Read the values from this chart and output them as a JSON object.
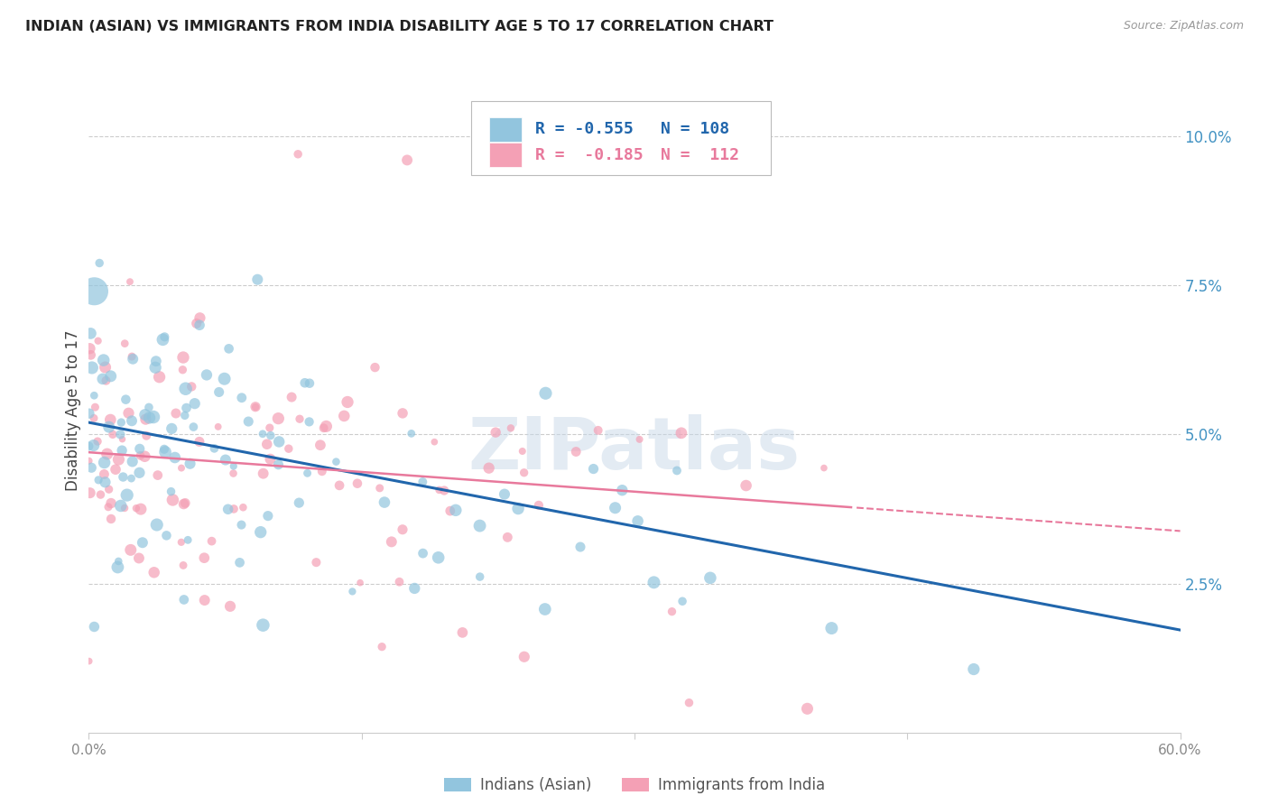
{
  "title": "INDIAN (ASIAN) VS IMMIGRANTS FROM INDIA DISABILITY AGE 5 TO 17 CORRELATION CHART",
  "source": "Source: ZipAtlas.com",
  "ylabel": "Disability Age 5 to 17",
  "right_ytick_labels": [
    "10.0%",
    "7.5%",
    "5.0%",
    "2.5%"
  ],
  "right_ytick_values": [
    0.1,
    0.075,
    0.05,
    0.025
  ],
  "xlim": [
    0.0,
    0.6
  ],
  "ylim": [
    0.0,
    0.108
  ],
  "color_blue": "#92c5de",
  "color_pink": "#f4a0b5",
  "color_blue_line": "#2166ac",
  "color_pink_line": "#e8799c",
  "color_title": "#222222",
  "color_source": "#999999",
  "color_right_labels": "#4393c3",
  "color_xtick": "#888888",
  "watermark_text": "ZIPatlas",
  "blue_n": 108,
  "pink_n": 112,
  "blue_intercept": 0.052,
  "blue_slope": -0.058,
  "pink_intercept": 0.047,
  "pink_slope": -0.022,
  "legend_text_r1": "R = -0.555",
  "legend_text_n1": "N = 108",
  "legend_text_r2": "R =  -0.185",
  "legend_text_n2": "N =  112"
}
